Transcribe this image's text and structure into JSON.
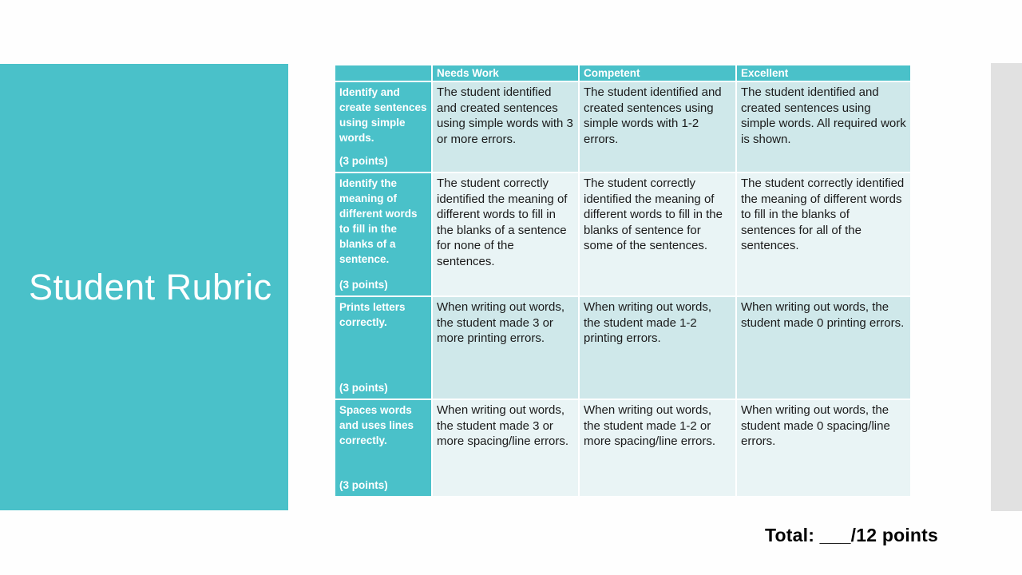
{
  "slide": {
    "title": "Student Rubric",
    "total_label": "Total: ___/12 points"
  },
  "colors": {
    "accent_teal": "#4ac1c9",
    "cell_band_dark": "#cfe8ea",
    "cell_band_light": "#e9f4f5",
    "side_strip_gray": "#e1e1e1",
    "body_text": "#1a1a1a",
    "header_text": "#ffffff"
  },
  "table": {
    "column_headers": [
      "Needs Work",
      "Competent",
      "Excellent"
    ],
    "rows": [
      {
        "criterion": "Identify and create sentences using simple words.",
        "points": "(3 points)",
        "needs_work": "The student identified and created sentences using simple words with 3 or more errors.",
        "competent": "The student identified and created sentences using simple words with 1-2 errors.",
        "excellent": "The student identified and created sentences using simple words. All required work is shown."
      },
      {
        "criterion": "Identify the meaning of different words to fill in the blanks of a sentence.",
        "points": "(3 points)",
        "needs_work": "The student correctly identified the meaning of different words to fill in the blanks of a sentence for none of the sentences.",
        "competent": "The student correctly identified the meaning of different words to fill in the blanks of sentence for some of the sentences.",
        "excellent": "The student correctly identified the meaning of different words to fill in the blanks of sentences for all of the sentences."
      },
      {
        "criterion": "Prints letters correctly.",
        "points": "(3 points)",
        "needs_work": "When writing out words, the student made 3 or more printing errors.",
        "competent": "When writing out words, the student made 1-2 printing errors.",
        "excellent": "When writing out words, the student made 0 printing errors."
      },
      {
        "criterion": "Spaces words and uses lines correctly.",
        "points": "(3 points)",
        "needs_work": "When writing out words, the student made 3 or more spacing/line errors.",
        "competent": "When writing out words, the student made 1-2 or more spacing/line errors.",
        "excellent": "When writing out words, the student made 0 spacing/line errors."
      }
    ]
  }
}
